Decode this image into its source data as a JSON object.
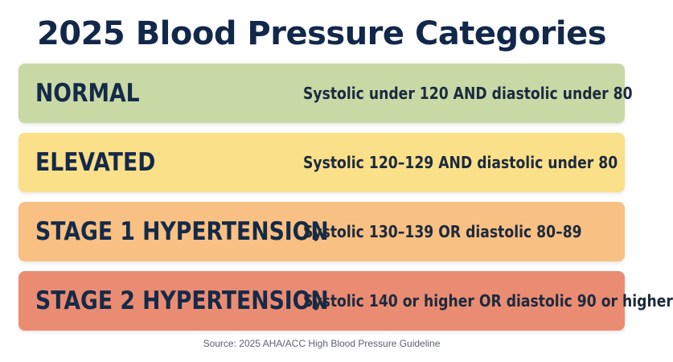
{
  "title": "2025 Blood Pressure Categories",
  "categories": [
    {
      "name": "NORMAL",
      "description": "Systolic under 120 AND diastolic under 80",
      "color": "#c8d9a6"
    },
    {
      "name": "ELEVATED",
      "description": "Systolic 120–129 AND diastolic under 80",
      "color": "#fbe08a"
    },
    {
      "name": "STAGE 1 HYPERTENSION",
      "description": "Systolic 130–139 OR diastolic 80–89",
      "color": "#f8c082"
    },
    {
      "name": "STAGE 2 HYPERTENSION",
      "description": "Systolic 140 or higher OR diastolic 90 or higher",
      "color": "#ea8c72"
    }
  ],
  "source": "Source: 2025 AHA/ACC High Blood Pressure Guideline"
}
